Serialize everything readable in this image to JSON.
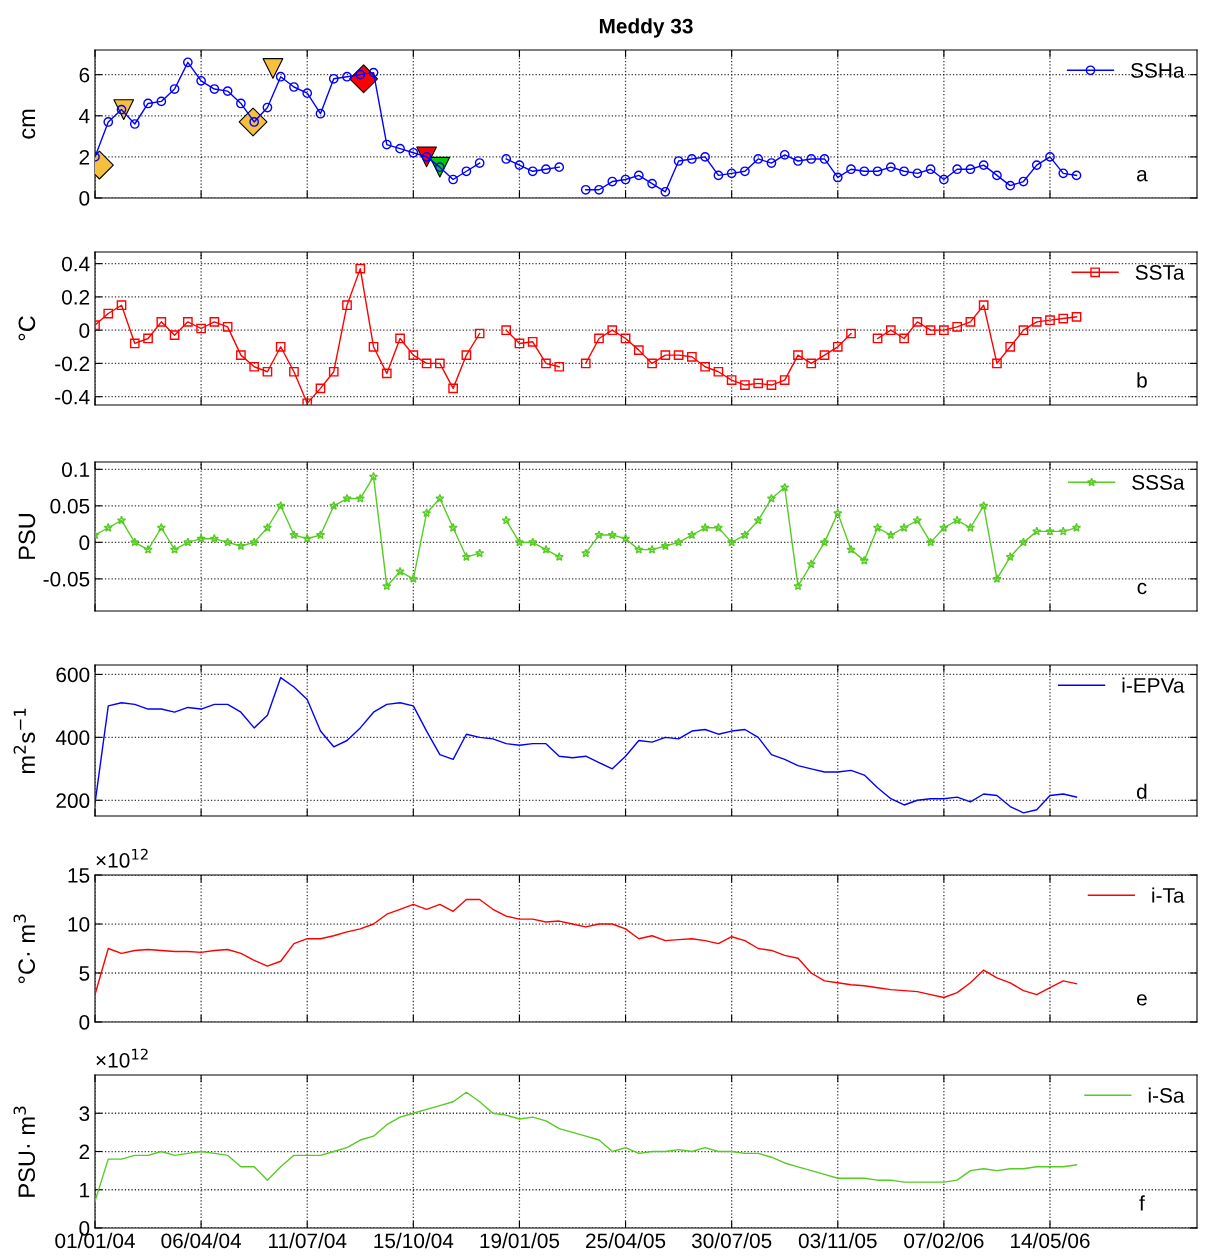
{
  "chart_data": [
    {
      "type": "line",
      "title": "Meddy 33",
      "ylabel": "cm",
      "ylim": [
        0,
        7.2
      ],
      "yticks": [
        0,
        2,
        4,
        6
      ],
      "xlim": [
        "2004-01-01",
        "2006-09-24"
      ],
      "xticks": [
        {
          "value": "2004-01-01",
          "label": null
        },
        {
          "value": "2004-04-06",
          "label": null
        },
        {
          "value": "2004-07-11",
          "label": null
        },
        {
          "value": "2004-10-15",
          "label": null
        },
        {
          "value": "2005-01-19",
          "label": null
        },
        {
          "value": "2005-04-25",
          "label": null
        },
        {
          "value": "2005-07-30",
          "label": null
        },
        {
          "value": "2005-11-03",
          "label": null
        },
        {
          "value": "2006-02-07",
          "label": null
        },
        {
          "value": "2006-05-14",
          "label": null
        }
      ],
      "tick_labels": "y",
      "grid": true,
      "legend": "top right",
      "annotations": [
        "a"
      ],
      "x": [
        "2004-01-01",
        "2004-01-13",
        "2004-01-25",
        "2004-02-06",
        "2004-02-18",
        "2004-03-01",
        "2004-03-13",
        "2004-03-25",
        "2004-04-06",
        "2004-04-18",
        "2004-04-30",
        "2004-05-12",
        "2004-05-24",
        "2004-06-05",
        "2004-06-17",
        "2004-06-29",
        "2004-07-11",
        "2004-07-23",
        "2004-08-04",
        "2004-08-16",
        "2004-08-28",
        "2004-09-09",
        "2004-09-21",
        "2004-10-03",
        "2004-10-15",
        "2004-10-27",
        "2004-11-08",
        "2004-11-20",
        "2004-12-02",
        "2004-12-14",
        "2004-12-26",
        "2005-01-07",
        "2005-01-19",
        "2005-01-31",
        "2005-02-12",
        "2005-02-24",
        "2005-03-08",
        "2005-03-20",
        "2005-04-01",
        "2005-04-13",
        "2005-04-25",
        "2005-05-07",
        "2005-05-19",
        "2005-05-31",
        "2005-06-12",
        "2005-06-24",
        "2005-07-06",
        "2005-07-18",
        "2005-07-30",
        "2005-08-11",
        "2005-08-23",
        "2005-09-04",
        "2005-09-16",
        "2005-09-28",
        "2005-10-10",
        "2005-10-22",
        "2005-11-03",
        "2005-11-15",
        "2005-11-27",
        "2005-12-09",
        "2005-12-21",
        "2006-01-02",
        "2006-01-14",
        "2006-01-26",
        "2006-02-07",
        "2006-02-19",
        "2006-03-03",
        "2006-03-15",
        "2006-03-27",
        "2006-04-08",
        "2006-04-20",
        "2006-05-02",
        "2006-05-14",
        "2006-05-26",
        "2006-06-07"
      ],
      "series": [
        {
          "name": "SSHa",
          "color": "#0000ff",
          "marker": "circle",
          "values": [
            2.0,
            3.7,
            4.3,
            3.6,
            4.6,
            4.7,
            5.3,
            6.6,
            5.7,
            5.3,
            5.2,
            4.6,
            3.7,
            4.4,
            5.9,
            5.4,
            5.1,
            4.1,
            5.8,
            5.9,
            6.0,
            6.1,
            2.6,
            2.4,
            2.2,
            2.0,
            1.5,
            0.9,
            1.3,
            1.7,
            null,
            1.9,
            1.6,
            1.3,
            1.4,
            1.5,
            null,
            0.4,
            0.4,
            0.8,
            0.9,
            1.1,
            0.7,
            0.3,
            1.8,
            1.9,
            2.0,
            1.1,
            1.2,
            1.3,
            1.9,
            1.7,
            2.1,
            1.8,
            1.9,
            1.9,
            1.0,
            1.4,
            1.3,
            1.3,
            1.5,
            1.3,
            1.2,
            1.4,
            0.9,
            1.4,
            1.4,
            1.6,
            1.1,
            0.6,
            0.8,
            1.6,
            2.0,
            1.2,
            1.1
          ]
        },
        {
          "type": "scatter",
          "color": "#f5c040",
          "marker": "diamond",
          "x": [
            "2004-01-05",
            "2004-05-23"
          ],
          "values": [
            1.6,
            3.7
          ]
        },
        {
          "type": "scatter",
          "color": "#f5c040",
          "marker": "triangle",
          "x": [
            "2004-01-27",
            "2004-06-10"
          ],
          "values": [
            4.3,
            6.3
          ]
        },
        {
          "type": "scatter",
          "color": "#ff0000",
          "marker": "diamond",
          "x": [
            "2004-08-31"
          ],
          "values": [
            5.8
          ]
        },
        {
          "type": "scatter",
          "color": "#ff0000",
          "marker": "triangle",
          "x": [
            "2004-10-27"
          ],
          "values": [
            2.0
          ]
        },
        {
          "type": "scatter",
          "color": "#00cc00",
          "marker": "triangle",
          "x": [
            "2004-11-08"
          ],
          "values": [
            1.5
          ]
        }
      ]
    },
    {
      "type": "line",
      "ylabel": "°C",
      "ylim": [
        -0.45,
        0.47
      ],
      "yticks": [
        -0.4,
        -0.2,
        0,
        0.2,
        0.4
      ],
      "xlim": [
        "2004-01-01",
        "2006-09-24"
      ],
      "xticks": [
        {
          "value": "2004-01-01",
          "label": null
        },
        {
          "value": "2004-04-06",
          "label": null
        },
        {
          "value": "2004-07-11",
          "label": null
        },
        {
          "value": "2004-10-15",
          "label": null
        },
        {
          "value": "2005-01-19",
          "label": null
        },
        {
          "value": "2005-04-25",
          "label": null
        },
        {
          "value": "2005-07-30",
          "label": null
        },
        {
          "value": "2005-11-03",
          "label": null
        },
        {
          "value": "2006-02-07",
          "label": null
        },
        {
          "value": "2006-05-14",
          "label": null
        }
      ],
      "tick_labels": "y",
      "grid": true,
      "legend": "top right",
      "annotations": [
        "b"
      ],
      "x": [
        "2004-01-01",
        "2004-01-13",
        "2004-01-25",
        "2004-02-06",
        "2004-02-18",
        "2004-03-01",
        "2004-03-13",
        "2004-03-25",
        "2004-04-06",
        "2004-04-18",
        "2004-04-30",
        "2004-05-12",
        "2004-05-24",
        "2004-06-05",
        "2004-06-17",
        "2004-06-29",
        "2004-07-11",
        "2004-07-23",
        "2004-08-04",
        "2004-08-16",
        "2004-08-28",
        "2004-09-09",
        "2004-09-21",
        "2004-10-03",
        "2004-10-15",
        "2004-10-27",
        "2004-11-08",
        "2004-11-20",
        "2004-12-02",
        "2004-12-14",
        "2004-12-26",
        "2005-01-07",
        "2005-01-19",
        "2005-01-31",
        "2005-02-12",
        "2005-02-24",
        "2005-03-08",
        "2005-03-20",
        "2005-04-01",
        "2005-04-13",
        "2005-04-25",
        "2005-05-07",
        "2005-05-19",
        "2005-05-31",
        "2005-06-12",
        "2005-06-24",
        "2005-07-06",
        "2005-07-18",
        "2005-07-30",
        "2005-08-11",
        "2005-08-23",
        "2005-09-04",
        "2005-09-16",
        "2005-09-28",
        "2005-10-10",
        "2005-10-22",
        "2005-11-03",
        "2005-11-15",
        "2005-11-27",
        "2005-12-09",
        "2005-12-21",
        "2006-01-02",
        "2006-01-14",
        "2006-01-26",
        "2006-02-07",
        "2006-02-19",
        "2006-03-03",
        "2006-03-15",
        "2006-03-27",
        "2006-04-08",
        "2006-04-20",
        "2006-05-02",
        "2006-05-14",
        "2006-05-26",
        "2006-06-07"
      ],
      "series": [
        {
          "name": "SSTa",
          "color": "#ff0000",
          "marker": "square",
          "values": [
            0.03,
            0.1,
            0.15,
            -0.08,
            -0.05,
            0.05,
            -0.03,
            0.05,
            0.01,
            0.05,
            0.02,
            -0.15,
            -0.22,
            -0.25,
            -0.1,
            -0.25,
            -0.44,
            -0.35,
            -0.25,
            0.15,
            0.37,
            -0.1,
            -0.26,
            -0.05,
            -0.15,
            -0.2,
            -0.2,
            -0.35,
            -0.15,
            -0.02,
            null,
            0.0,
            -0.08,
            -0.07,
            -0.2,
            -0.22,
            null,
            -0.2,
            -0.05,
            0.0,
            -0.05,
            -0.12,
            -0.2,
            -0.15,
            -0.15,
            -0.16,
            -0.22,
            -0.25,
            -0.3,
            -0.33,
            -0.32,
            -0.33,
            -0.3,
            -0.15,
            -0.2,
            -0.15,
            -0.1,
            -0.02,
            null,
            -0.05,
            0.0,
            -0.05,
            0.05,
            0.0,
            0.0,
            0.02,
            0.05,
            0.15,
            -0.2,
            -0.1,
            0.0,
            0.05,
            0.06,
            0.07,
            0.08
          ]
        }
      ]
    },
    {
      "type": "line",
      "ylabel": "PSU",
      "ylim": [
        -0.094,
        0.11
      ],
      "yticks": [
        -0.05,
        0,
        0.05,
        0.1
      ],
      "xlim": [
        "2004-01-01",
        "2006-09-24"
      ],
      "xticks": [
        {
          "value": "2004-01-01",
          "label": null
        },
        {
          "value": "2004-04-06",
          "label": null
        },
        {
          "value": "2004-07-11",
          "label": null
        },
        {
          "value": "2004-10-15",
          "label": null
        },
        {
          "value": "2005-01-19",
          "label": null
        },
        {
          "value": "2005-04-25",
          "label": null
        },
        {
          "value": "2005-07-30",
          "label": null
        },
        {
          "value": "2005-11-03",
          "label": null
        },
        {
          "value": "2006-02-07",
          "label": null
        },
        {
          "value": "2006-05-14",
          "label": null
        }
      ],
      "tick_labels": "y",
      "grid": true,
      "legend": "top right",
      "annotations": [
        "c"
      ],
      "x": [
        "2004-01-01",
        "2004-01-13",
        "2004-01-25",
        "2004-02-06",
        "2004-02-18",
        "2004-03-01",
        "2004-03-13",
        "2004-03-25",
        "2004-04-06",
        "2004-04-18",
        "2004-04-30",
        "2004-05-12",
        "2004-05-24",
        "2004-06-05",
        "2004-06-17",
        "2004-06-29",
        "2004-07-11",
        "2004-07-23",
        "2004-08-04",
        "2004-08-16",
        "2004-08-28",
        "2004-09-09",
        "2004-09-21",
        "2004-10-03",
        "2004-10-15",
        "2004-10-27",
        "2004-11-08",
        "2004-11-20",
        "2004-12-02",
        "2004-12-14",
        "2004-12-26",
        "2005-01-07",
        "2005-01-19",
        "2005-01-31",
        "2005-02-12",
        "2005-02-24",
        "2005-03-08",
        "2005-03-20",
        "2005-04-01",
        "2005-04-13",
        "2005-04-25",
        "2005-05-07",
        "2005-05-19",
        "2005-05-31",
        "2005-06-12",
        "2005-06-24",
        "2005-07-06",
        "2005-07-18",
        "2005-07-30",
        "2005-08-11",
        "2005-08-23",
        "2005-09-04",
        "2005-09-16",
        "2005-09-28",
        "2005-10-10",
        "2005-10-22",
        "2005-11-03",
        "2005-11-15",
        "2005-11-27",
        "2005-12-09",
        "2005-12-21",
        "2006-01-02",
        "2006-01-14",
        "2006-01-26",
        "2006-02-07",
        "2006-02-19",
        "2006-03-03",
        "2006-03-15",
        "2006-03-27",
        "2006-04-08",
        "2006-04-20",
        "2006-05-02",
        "2006-05-14",
        "2006-05-26",
        "2006-06-07"
      ],
      "series": [
        {
          "name": "SSSa",
          "color": "#55cc22",
          "marker": "star",
          "values": [
            0.01,
            0.02,
            0.03,
            0.0,
            -0.01,
            0.02,
            -0.01,
            0.0,
            0.005,
            0.005,
            0.0,
            -0.005,
            0.0,
            0.02,
            0.05,
            0.01,
            0.005,
            0.01,
            0.05,
            0.06,
            0.06,
            0.09,
            -0.06,
            -0.04,
            -0.05,
            0.04,
            0.06,
            0.02,
            -0.02,
            -0.015,
            null,
            0.03,
            0.0,
            0.0,
            -0.01,
            -0.02,
            null,
            -0.015,
            0.01,
            0.01,
            0.005,
            -0.01,
            -0.01,
            -0.005,
            0.0,
            0.01,
            0.02,
            0.02,
            0.0,
            0.01,
            0.03,
            0.06,
            0.075,
            -0.06,
            -0.03,
            0.0,
            0.04,
            -0.01,
            -0.025,
            0.02,
            0.01,
            0.02,
            0.03,
            0.0,
            0.02,
            0.03,
            0.02,
            0.05,
            -0.05,
            -0.02,
            0.0,
            0.015,
            0.015,
            0.015,
            0.02
          ]
        }
      ]
    },
    {
      "type": "line",
      "ylabel": "m$^{2}$s$^{−1}$",
      "ylim": [
        150,
        630
      ],
      "yticks": [
        200,
        400,
        600
      ],
      "xlim": [
        "2004-01-01",
        "2006-09-24"
      ],
      "xticks": [
        {
          "value": "2004-01-01",
          "label": null
        },
        {
          "value": "2004-04-06",
          "label": null
        },
        {
          "value": "2004-07-11",
          "label": null
        },
        {
          "value": "2004-10-15",
          "label": null
        },
        {
          "value": "2005-01-19",
          "label": null
        },
        {
          "value": "2005-04-25",
          "label": null
        },
        {
          "value": "2005-07-30",
          "label": null
        },
        {
          "value": "2005-11-03",
          "label": null
        },
        {
          "value": "2006-02-07",
          "label": null
        },
        {
          "value": "2006-05-14",
          "label": null
        }
      ],
      "tick_labels": "y",
      "grid": true,
      "legend": "top right",
      "annotations": [
        "d"
      ],
      "x": [
        "2004-01-01",
        "2004-01-13",
        "2004-01-25",
        "2004-02-06",
        "2004-02-18",
        "2004-03-01",
        "2004-03-13",
        "2004-03-25",
        "2004-04-06",
        "2004-04-18",
        "2004-04-30",
        "2004-05-12",
        "2004-05-24",
        "2004-06-05",
        "2004-06-17",
        "2004-06-29",
        "2004-07-11",
        "2004-07-23",
        "2004-08-04",
        "2004-08-16",
        "2004-08-28",
        "2004-09-09",
        "2004-09-21",
        "2004-10-03",
        "2004-10-15",
        "2004-10-27",
        "2004-11-08",
        "2004-11-20",
        "2004-12-02",
        "2004-12-14",
        "2004-12-26",
        "2005-01-07",
        "2005-01-19",
        "2005-01-31",
        "2005-02-12",
        "2005-02-24",
        "2005-03-08",
        "2005-03-20",
        "2005-04-01",
        "2005-04-13",
        "2005-04-25",
        "2005-05-07",
        "2005-05-19",
        "2005-05-31",
        "2005-06-12",
        "2005-06-24",
        "2005-07-06",
        "2005-07-18",
        "2005-07-30",
        "2005-08-11",
        "2005-08-23",
        "2005-09-04",
        "2005-09-16",
        "2005-09-28",
        "2005-10-10",
        "2005-10-22",
        "2005-11-03",
        "2005-11-15",
        "2005-11-27",
        "2005-12-09",
        "2005-12-21",
        "2006-01-02",
        "2006-01-14",
        "2006-01-26",
        "2006-02-07",
        "2006-02-19",
        "2006-03-03",
        "2006-03-15",
        "2006-03-27",
        "2006-04-08",
        "2006-04-20",
        "2006-05-02",
        "2006-05-14",
        "2006-05-26",
        "2006-06-07"
      ],
      "series": [
        {
          "name": "i-EPVa",
          "color": "#0000ff",
          "values": [
            190,
            500,
            510,
            505,
            490,
            490,
            480,
            495,
            490,
            505,
            505,
            480,
            430,
            470,
            590,
            560,
            520,
            420,
            370,
            390,
            430,
            480,
            505,
            510,
            500,
            420,
            345,
            330,
            410,
            400,
            395,
            380,
            375,
            380,
            380,
            340,
            335,
            340,
            320,
            300,
            340,
            390,
            385,
            400,
            395,
            420,
            425,
            410,
            420,
            425,
            400,
            345,
            330,
            310,
            300,
            290,
            290,
            295,
            280,
            240,
            205,
            185,
            200,
            205,
            205,
            210,
            195,
            220,
            215,
            180,
            160,
            170,
            215,
            220,
            210
          ]
        }
      ]
    },
    {
      "type": "line",
      "ylabel": "°C· m$^{3}$",
      "ylim": [
        0,
        15
      ],
      "yticks": [
        0,
        5,
        10,
        15
      ],
      "xlim": [
        "2004-01-01",
        "2006-09-24"
      ],
      "xticks": [
        {
          "value": "2004-01-01",
          "label": null
        },
        {
          "value": "2004-04-06",
          "label": null
        },
        {
          "value": "2004-07-11",
          "label": null
        },
        {
          "value": "2004-10-15",
          "label": null
        },
        {
          "value": "2005-01-19",
          "label": null
        },
        {
          "value": "2005-04-25",
          "label": null
        },
        {
          "value": "2005-07-30",
          "label": null
        },
        {
          "value": "2005-11-03",
          "label": null
        },
        {
          "value": "2006-02-07",
          "label": null
        },
        {
          "value": "2006-05-14",
          "label": null
        }
      ],
      "tick_labels": "y",
      "grid": true,
      "legend": "top right",
      "annotations": [
        "e",
        "×10$^{12}$"
      ],
      "x": [
        "2004-01-01",
        "2004-01-13",
        "2004-01-25",
        "2004-02-06",
        "2004-02-18",
        "2004-03-01",
        "2004-03-13",
        "2004-03-25",
        "2004-04-06",
        "2004-04-18",
        "2004-04-30",
        "2004-05-12",
        "2004-05-24",
        "2004-06-05",
        "2004-06-17",
        "2004-06-29",
        "2004-07-11",
        "2004-07-23",
        "2004-08-04",
        "2004-08-16",
        "2004-08-28",
        "2004-09-09",
        "2004-09-21",
        "2004-10-03",
        "2004-10-15",
        "2004-10-27",
        "2004-11-08",
        "2004-11-20",
        "2004-12-02",
        "2004-12-14",
        "2004-12-26",
        "2005-01-07",
        "2005-01-19",
        "2005-01-31",
        "2005-02-12",
        "2005-02-24",
        "2005-03-08",
        "2005-03-20",
        "2005-04-01",
        "2005-04-13",
        "2005-04-25",
        "2005-05-07",
        "2005-05-19",
        "2005-05-31",
        "2005-06-12",
        "2005-06-24",
        "2005-07-06",
        "2005-07-18",
        "2005-07-30",
        "2005-08-11",
        "2005-08-23",
        "2005-09-04",
        "2005-09-16",
        "2005-09-28",
        "2005-10-10",
        "2005-10-22",
        "2005-11-03",
        "2005-11-15",
        "2005-11-27",
        "2005-12-09",
        "2005-12-21",
        "2006-01-02",
        "2006-01-14",
        "2006-01-26",
        "2006-02-07",
        "2006-02-19",
        "2006-03-03",
        "2006-03-15",
        "2006-03-27",
        "2006-04-08",
        "2006-04-20",
        "2006-05-02",
        "2006-05-14",
        "2006-05-26",
        "2006-06-07"
      ],
      "series": [
        {
          "name": "i-Ta",
          "color": "#ff0000",
          "values": [
            2.8,
            7.5,
            7.0,
            7.3,
            7.4,
            7.3,
            7.2,
            7.2,
            7.1,
            7.3,
            7.4,
            7.0,
            6.3,
            5.7,
            6.2,
            8.0,
            8.5,
            8.5,
            8.8,
            9.2,
            9.5,
            10.0,
            11.0,
            11.5,
            12.0,
            11.5,
            12.0,
            11.3,
            12.5,
            12.5,
            11.5,
            10.8,
            10.5,
            10.5,
            10.2,
            10.3,
            10.0,
            9.7,
            10.0,
            10.0,
            9.5,
            8.5,
            8.8,
            8.3,
            8.4,
            8.5,
            8.3,
            8.0,
            8.7,
            8.3,
            7.5,
            7.3,
            6.8,
            6.5,
            5.0,
            4.2,
            4.0,
            3.8,
            3.7,
            3.5,
            3.3,
            3.2,
            3.1,
            2.8,
            2.5,
            3.0,
            4.0,
            5.3,
            4.5,
            4.0,
            3.2,
            2.8,
            3.5,
            4.2,
            3.9
          ]
        }
      ]
    },
    {
      "type": "line",
      "ylabel": "PSU· m$^{3}$",
      "ylim": [
        0,
        4
      ],
      "yticks": [
        0,
        1,
        2,
        3
      ],
      "xlim": [
        "2004-01-01",
        "2006-09-24"
      ],
      "xticks": [
        {
          "value": "2004-01-01",
          "label": "01/01/04"
        },
        {
          "value": "2004-04-06",
          "label": "06/04/04"
        },
        {
          "value": "2004-07-11",
          "label": "11/07/04"
        },
        {
          "value": "2004-10-15",
          "label": "15/10/04"
        },
        {
          "value": "2005-01-19",
          "label": "19/01/05"
        },
        {
          "value": "2005-04-25",
          "label": "25/04/05"
        },
        {
          "value": "2005-07-30",
          "label": "30/07/05"
        },
        {
          "value": "2005-11-03",
          "label": "03/11/05"
        },
        {
          "value": "2006-02-07",
          "label": "07/02/06"
        },
        {
          "value": "2006-05-14",
          "label": "14/05/06"
        }
      ],
      "grid": true,
      "legend": "top right",
      "annotations": [
        "f",
        "×10$^{12}$"
      ],
      "x": [
        "2004-01-01",
        "2004-01-13",
        "2004-01-25",
        "2004-02-06",
        "2004-02-18",
        "2004-03-01",
        "2004-03-13",
        "2004-03-25",
        "2004-04-06",
        "2004-04-18",
        "2004-04-30",
        "2004-05-12",
        "2004-05-24",
        "2004-06-05",
        "2004-06-17",
        "2004-06-29",
        "2004-07-11",
        "2004-07-23",
        "2004-08-04",
        "2004-08-16",
        "2004-08-28",
        "2004-09-09",
        "2004-09-21",
        "2004-10-03",
        "2004-10-15",
        "2004-10-27",
        "2004-11-08",
        "2004-11-20",
        "2004-12-02",
        "2004-12-14",
        "2004-12-26",
        "2005-01-07",
        "2005-01-19",
        "2005-01-31",
        "2005-02-12",
        "2005-02-24",
        "2005-03-08",
        "2005-03-20",
        "2005-04-01",
        "2005-04-13",
        "2005-04-25",
        "2005-05-07",
        "2005-05-19",
        "2005-05-31",
        "2005-06-12",
        "2005-06-24",
        "2005-07-06",
        "2005-07-18",
        "2005-07-30",
        "2005-08-11",
        "2005-08-23",
        "2005-09-04",
        "2005-09-16",
        "2005-09-28",
        "2005-10-10",
        "2005-10-22",
        "2005-11-03",
        "2005-11-15",
        "2005-11-27",
        "2005-12-09",
        "2005-12-21",
        "2006-01-02",
        "2006-01-14",
        "2006-01-26",
        "2006-02-07",
        "2006-02-19",
        "2006-03-03",
        "2006-03-15",
        "2006-03-27",
        "2006-04-08",
        "2006-04-20",
        "2006-05-02",
        "2006-05-14",
        "2006-05-26",
        "2006-06-07"
      ],
      "series": [
        {
          "name": "i-Sa",
          "color": "#55cc22",
          "values": [
            0.7,
            1.8,
            1.8,
            1.9,
            1.9,
            2.0,
            1.9,
            1.95,
            2.0,
            1.95,
            1.9,
            1.6,
            1.6,
            1.25,
            1.6,
            1.9,
            1.9,
            1.9,
            2.0,
            2.1,
            2.3,
            2.4,
            2.7,
            2.9,
            3.0,
            3.1,
            3.2,
            3.3,
            3.55,
            3.3,
            3.0,
            2.95,
            2.85,
            2.9,
            2.8,
            2.6,
            2.5,
            2.4,
            2.3,
            2.0,
            2.1,
            1.95,
            2.0,
            2.0,
            2.05,
            2.0,
            2.1,
            2.0,
            2.0,
            1.95,
            1.95,
            1.85,
            1.7,
            1.6,
            1.5,
            1.4,
            1.3,
            1.3,
            1.3,
            1.25,
            1.25,
            1.2,
            1.2,
            1.2,
            1.2,
            1.25,
            1.5,
            1.55,
            1.5,
            1.55,
            1.55,
            1.6,
            1.6,
            1.6,
            1.65
          ]
        }
      ]
    }
  ]
}
